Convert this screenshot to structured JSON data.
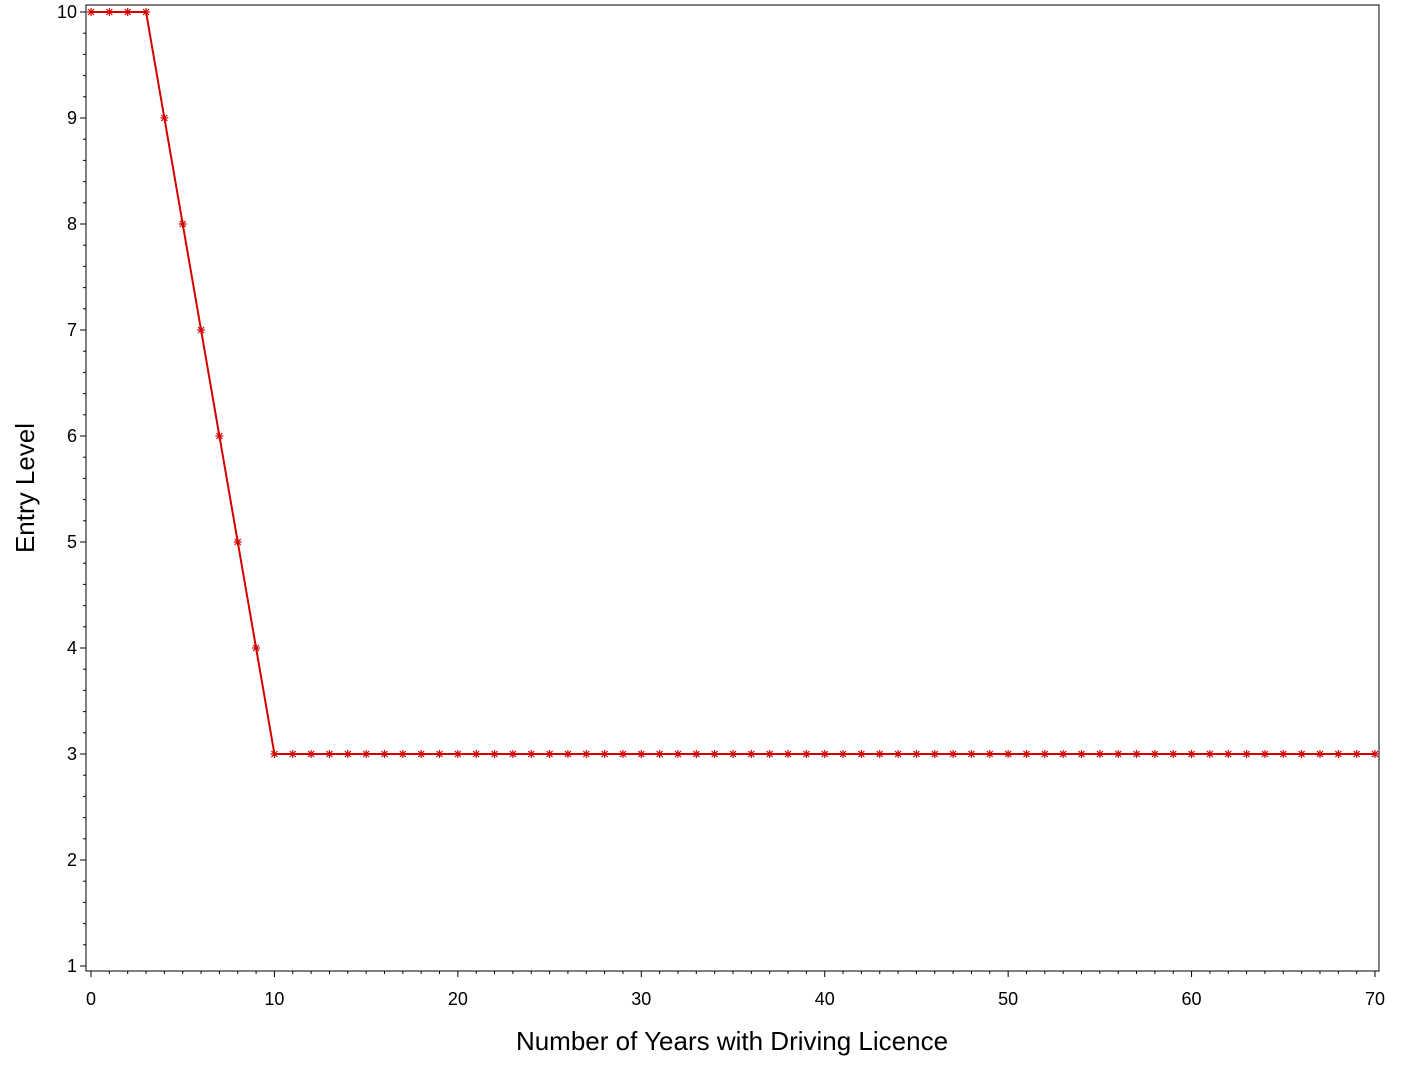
{
  "chart_data": {
    "type": "line",
    "title": "",
    "xlabel": "Number of Years with Driving Licence",
    "ylabel": "Entry Level",
    "xlim": [
      0,
      70
    ],
    "ylim": [
      1,
      10
    ],
    "x_ticks": [
      0,
      10,
      20,
      30,
      40,
      50,
      60,
      70
    ],
    "y_ticks": [
      1,
      2,
      3,
      4,
      5,
      6,
      7,
      8,
      9,
      10
    ],
    "x_tick_labels": [
      "0",
      "10",
      "20",
      "30",
      "40",
      "50",
      "60",
      "70"
    ],
    "y_tick_labels": [
      "1",
      "2",
      "3",
      "4",
      "5",
      "6",
      "7",
      "8",
      "9",
      "10"
    ],
    "grid": false,
    "legend": "none",
    "marker": "asterisk",
    "color": "#d40000",
    "series": [
      {
        "x": [
          0,
          1,
          2,
          3,
          4,
          5,
          6,
          7,
          8,
          9,
          10,
          11,
          12,
          13,
          14,
          15,
          16,
          17,
          18,
          19,
          20,
          21,
          22,
          23,
          24,
          25,
          26,
          27,
          28,
          29,
          30,
          31,
          32,
          33,
          34,
          35,
          36,
          37,
          38,
          39,
          40,
          41,
          42,
          43,
          44,
          45,
          46,
          47,
          48,
          49,
          50,
          51,
          52,
          53,
          54,
          55,
          56,
          57,
          58,
          59,
          60,
          61,
          62,
          63,
          64,
          65,
          66,
          67,
          68,
          69,
          70
        ],
        "y": [
          10,
          10,
          10,
          10,
          9,
          8,
          7,
          6,
          5,
          4,
          3,
          3,
          3,
          3,
          3,
          3,
          3,
          3,
          3,
          3,
          3,
          3,
          3,
          3,
          3,
          3,
          3,
          3,
          3,
          3,
          3,
          3,
          3,
          3,
          3,
          3,
          3,
          3,
          3,
          3,
          3,
          3,
          3,
          3,
          3,
          3,
          3,
          3,
          3,
          3,
          3,
          3,
          3,
          3,
          3,
          3,
          3,
          3,
          3,
          3,
          3,
          3,
          3,
          3,
          3,
          3,
          3,
          3,
          3,
          3,
          3
        ]
      }
    ]
  }
}
